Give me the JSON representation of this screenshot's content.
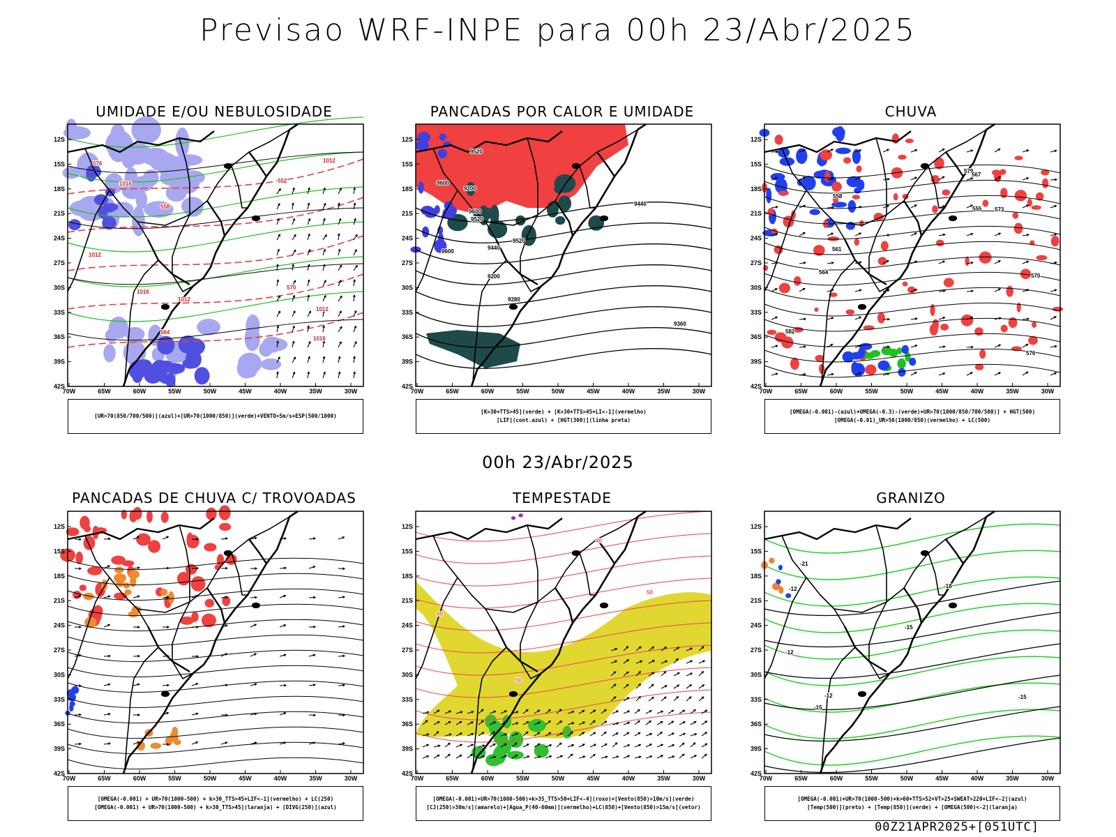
{
  "title": "Previsao WRF-INPE  para 00h 23/Abr/2025",
  "mid_title": "00h 23/Abr/2025",
  "footer": "00Z21APR2025+[051UTC]",
  "lat_labels": [
    "12S",
    "15S",
    "18S",
    "21S",
    "24S",
    "27S",
    "30S",
    "33S",
    "36S",
    "39S",
    "42S"
  ],
  "lon_labels": [
    "70W",
    "65W",
    "60W",
    "55W",
    "50W",
    "45W",
    "40W",
    "35W",
    "30W"
  ],
  "panels": [
    {
      "title": "UMIDADE E/OU NEBULOSIDADE",
      "legend": [
        "[UR>70(850/700/500)](azul)+[UR>70(1000/850)](verde)+VENTO>5m/s+ESP(500/1000)"
      ],
      "contour_labels": [
        "1012",
        "1012",
        "1016",
        "1016",
        "1012",
        "564",
        "570",
        "576",
        "552",
        "558",
        "1012",
        "1016"
      ],
      "colors": {
        "humidity_high": "#a8a8f0",
        "humidity_deep": "#5050e0",
        "low_humid": "#20c020",
        "thickness": "#e04040"
      }
    },
    {
      "title": "PANCADAS POR CALOR E UMIDADE",
      "legend": [
        "[K>30+TTS>45](verde) + [K>30+TTS>45+LI<-1](vermelho)",
        "[LIF](cont.azul) + [HGT(300)](linha preta)"
      ],
      "contour_labels": [
        "9600",
        "9520",
        "9440",
        "9600",
        "9520",
        "9440",
        "9360",
        "9280",
        "9200",
        "9200",
        "9600",
        "9520"
      ],
      "colors": {
        "red": "#f04040",
        "green": "#1e4a4a",
        "blue": "#4040e0"
      }
    },
    {
      "title": "CHUVA",
      "legend": [
        "[OMEGA(-0.001)-(azul)+OMEGA(-0.3)-(verde)+UR>70(1000/850/700/500)] + HGT(500)",
        "[OMEGA(-0.01)_UR>50(1000/850)(vermelho) + LC(500)"
      ],
      "contour_labels": [
        "582",
        "576",
        "579",
        "567",
        "564",
        "558",
        "555",
        "570",
        "573",
        "561"
      ],
      "colors": {
        "blue": "#2040f0",
        "green": "#20c020",
        "red": "#f04040"
      }
    },
    {
      "title": "PANCADAS DE CHUVA C/ TROVOADAS",
      "legend": [
        "[OMEGA(-0.001) + UR>70(1000-500) + k>30_TTS>45+LIF<-1](vermelho) + LC(250)",
        "[OMEGA(-0.001) + UR>70(1000-500) + k>30_TTS>45](laranja) + [DIVG(250)](azul)"
      ],
      "contour_labels": [],
      "colors": {
        "red": "#f04040",
        "orange": "#f08a30",
        "blue": "#2040f0"
      }
    },
    {
      "title": "TEMPESTADE",
      "legend": [
        "[OMEGA(-0.001)+UR>70(1000-500)+k>35_TTS>50+LIF<-4](roxo)+[Vento(850)>10m/s](verde)",
        "[CJ(250)>30m/s](amarelo)+[Agua_P(40-60mm)](vermelho)+LC(850)+[Vento(850)>15m/s](vetor)"
      ],
      "contour_labels": [
        "40",
        "50",
        "50",
        "40"
      ],
      "colors": {
        "yellow": "#e0d830",
        "green": "#30c030",
        "red": "#f05050",
        "purple": "#a020c0"
      }
    },
    {
      "title": "GRANIZO",
      "legend": [
        "[OMEGA(-0.001)+UR>70(1000-500)+k>60+TTS>52+VT>25+SWEAT>220+LIF<-2](azul)",
        "[Temp(500)](preto) + [Temp(850)](verde) + [OMEGA(500)<-2](laranja)"
      ],
      "contour_labels": [
        "-12",
        "-15",
        "-18",
        "-21",
        "-12",
        "-15",
        "-12",
        "-15"
      ],
      "colors": {
        "green": "#20d020",
        "orange": "#f08030",
        "blue": "#2040f0"
      }
    }
  ]
}
